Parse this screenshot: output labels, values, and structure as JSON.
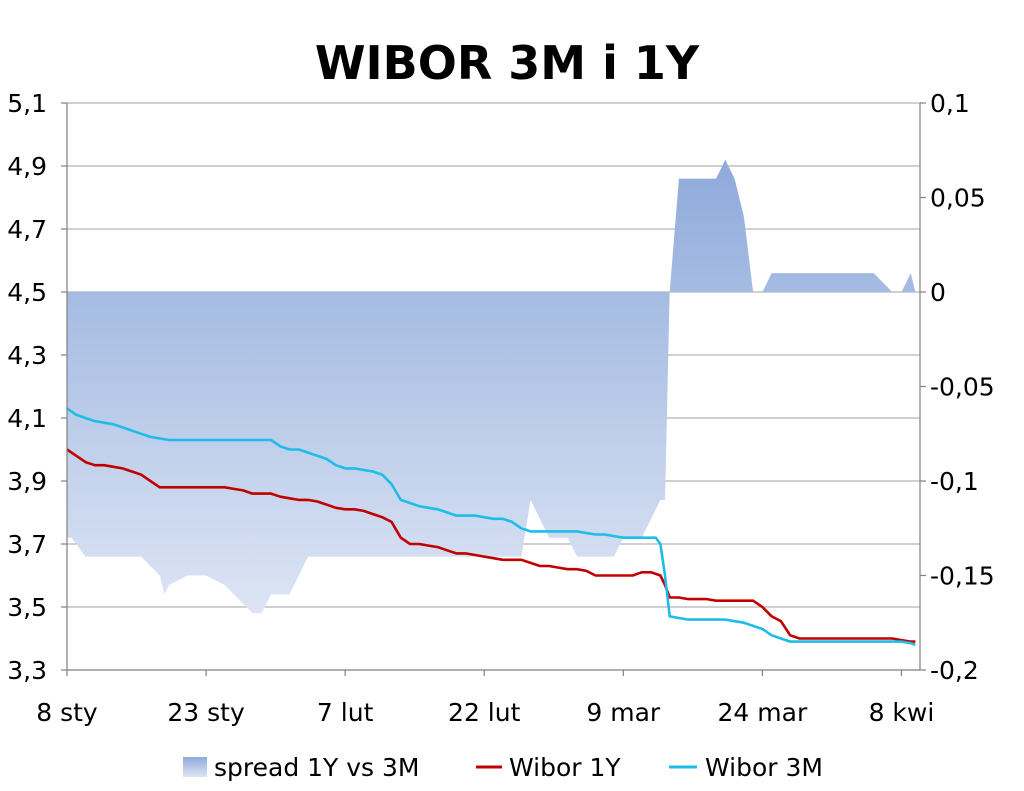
{
  "chart_data": {
    "type": "line",
    "title": "WIBOR 3M i 1Y",
    "x_tick_labels": [
      "8 sty",
      "23 sty",
      "7 lut",
      "22 lut",
      "9 mar",
      "24 mar",
      "8 kwi"
    ],
    "x_tick_days": [
      0,
      15,
      30,
      45,
      60,
      75,
      90
    ],
    "x_range_days": [
      0,
      92
    ],
    "y_left": {
      "range": [
        3.3,
        5.1
      ],
      "ticks": [
        3.3,
        3.5,
        3.7,
        3.9,
        4.1,
        4.3,
        4.5,
        4.7,
        4.9,
        5.1
      ],
      "tick_labels": [
        "3,3",
        "3,5",
        "3,7",
        "3,9",
        "4,1",
        "4,3",
        "4,5",
        "4,7",
        "4,9",
        "5,1"
      ]
    },
    "y_right": {
      "range": [
        -0.2,
        0.1
      ],
      "ticks": [
        -0.2,
        -0.15,
        -0.1,
        -0.05,
        0,
        0.05,
        0.1
      ],
      "tick_labels": [
        "-0,2",
        "-0,15",
        "-0,1",
        "-0,05",
        "0",
        "0,05",
        "0,1"
      ]
    },
    "grid": true,
    "legend_position": "bottom",
    "series": [
      {
        "name": "spread 1Y vs 3M",
        "kind": "area",
        "axis": "right",
        "color_top": "#8eaadb",
        "color_bottom": "#dde5f4",
        "x": [
          0,
          0.5,
          2,
          4,
          6,
          8,
          10,
          10.5,
          11,
          13,
          15,
          17,
          18,
          20,
          21,
          22,
          23,
          24,
          25,
          26,
          27,
          28,
          29,
          30,
          30.5,
          31,
          32,
          33,
          34,
          35,
          36,
          36.5,
          37,
          38,
          39,
          40,
          41,
          42,
          43,
          44,
          45,
          46,
          47,
          48,
          49,
          50,
          51,
          52,
          53,
          54,
          55,
          56,
          57,
          58,
          59,
          60,
          61,
          62,
          63,
          64,
          64.5,
          65,
          66,
          67,
          68,
          69,
          70,
          71,
          72,
          73,
          74,
          75,
          76,
          77,
          78,
          79,
          80,
          81,
          82,
          83,
          84,
          85,
          86,
          87,
          88,
          89,
          90,
          91,
          91.5
        ],
        "values": [
          -0.13,
          -0.13,
          -0.14,
          -0.14,
          -0.14,
          -0.14,
          -0.15,
          -0.16,
          -0.155,
          -0.15,
          -0.15,
          -0.155,
          -0.16,
          -0.17,
          -0.17,
          -0.16,
          -0.16,
          -0.16,
          -0.15,
          -0.14,
          -0.14,
          -0.14,
          -0.14,
          -0.14,
          -0.14,
          -0.14,
          -0.14,
          -0.14,
          -0.14,
          -0.14,
          -0.14,
          -0.14,
          -0.14,
          -0.14,
          -0.14,
          -0.14,
          -0.14,
          -0.14,
          -0.14,
          -0.14,
          -0.14,
          -0.14,
          -0.14,
          -0.14,
          -0.14,
          -0.11,
          -0.12,
          -0.13,
          -0.13,
          -0.13,
          -0.14,
          -0.14,
          -0.14,
          -0.14,
          -0.14,
          -0.13,
          -0.13,
          -0.13,
          -0.12,
          -0.11,
          -0.11,
          0,
          0.06,
          0.06,
          0.06,
          0.06,
          0.06,
          0.07,
          0.06,
          0.04,
          0,
          0,
          0.01,
          0.01,
          0.01,
          0.01,
          0.01,
          0.01,
          0.01,
          0.01,
          0.01,
          0.01,
          0.01,
          0.01,
          0.005,
          0,
          0,
          0.01,
          0
        ]
      },
      {
        "name": "Wibor 1Y",
        "kind": "line",
        "axis": "left",
        "color": "#c00000",
        "x": [
          0,
          1,
          2,
          3,
          4,
          5,
          6,
          7,
          8,
          9,
          10,
          11,
          12,
          13,
          14,
          15,
          16,
          17,
          18,
          19,
          20,
          21,
          22,
          23,
          24,
          25,
          26,
          27,
          28,
          29,
          30,
          31,
          32,
          33,
          34,
          35,
          36,
          37,
          38,
          39,
          40,
          41,
          42,
          43,
          44,
          45,
          46,
          47,
          48,
          49,
          50,
          51,
          52,
          53,
          54,
          55,
          56,
          57,
          58,
          59,
          60,
          61,
          62,
          63,
          63.5,
          64,
          64.5,
          65,
          66,
          67,
          68,
          69,
          70,
          71,
          72,
          73,
          74,
          75,
          76,
          77,
          78,
          79,
          80,
          81,
          82,
          83,
          84,
          85,
          86,
          87,
          88,
          89,
          90,
          91,
          91.5
        ],
        "values": [
          4.0,
          3.98,
          3.96,
          3.95,
          3.95,
          3.945,
          3.94,
          3.93,
          3.92,
          3.9,
          3.88,
          3.88,
          3.88,
          3.88,
          3.88,
          3.88,
          3.88,
          3.88,
          3.875,
          3.87,
          3.86,
          3.86,
          3.86,
          3.85,
          3.845,
          3.84,
          3.84,
          3.835,
          3.825,
          3.815,
          3.81,
          3.81,
          3.805,
          3.795,
          3.785,
          3.77,
          3.72,
          3.7,
          3.7,
          3.695,
          3.69,
          3.68,
          3.67,
          3.67,
          3.665,
          3.66,
          3.655,
          3.65,
          3.65,
          3.65,
          3.64,
          3.63,
          3.63,
          3.625,
          3.62,
          3.62,
          3.615,
          3.6,
          3.6,
          3.6,
          3.6,
          3.6,
          3.61,
          3.61,
          3.605,
          3.6,
          3.57,
          3.53,
          3.53,
          3.525,
          3.525,
          3.525,
          3.52,
          3.52,
          3.52,
          3.52,
          3.52,
          3.5,
          3.47,
          3.455,
          3.41,
          3.4,
          3.4,
          3.4,
          3.4,
          3.4,
          3.4,
          3.4,
          3.4,
          3.4,
          3.4,
          3.4,
          3.395,
          3.39,
          3.39
        ]
      },
      {
        "name": "Wibor 3M",
        "kind": "line",
        "axis": "left",
        "color": "#1ebde8",
        "x": [
          0,
          1,
          2,
          3,
          4,
          5,
          6,
          7,
          8,
          9,
          10,
          11,
          12,
          13,
          14,
          15,
          16,
          17,
          18,
          19,
          20,
          21,
          22,
          23,
          24,
          25,
          26,
          27,
          28,
          29,
          30,
          31,
          32,
          33,
          34,
          35,
          36,
          37,
          38,
          39,
          40,
          41,
          42,
          43,
          44,
          45,
          46,
          47,
          48,
          49,
          50,
          51,
          52,
          53,
          54,
          55,
          56,
          57,
          58,
          59,
          60,
          61,
          62,
          63,
          63.5,
          64,
          64.5,
          65,
          66,
          67,
          68,
          69,
          70,
          71,
          72,
          73,
          74,
          75,
          76,
          77,
          78,
          79,
          80,
          81,
          82,
          83,
          84,
          85,
          86,
          87,
          88,
          89,
          90,
          91,
          91.5
        ],
        "values": [
          4.13,
          4.11,
          4.1,
          4.09,
          4.085,
          4.08,
          4.07,
          4.06,
          4.05,
          4.04,
          4.035,
          4.03,
          4.03,
          4.03,
          4.03,
          4.03,
          4.03,
          4.03,
          4.03,
          4.03,
          4.03,
          4.03,
          4.03,
          4.01,
          4.0,
          4.0,
          3.99,
          3.98,
          3.97,
          3.95,
          3.94,
          3.94,
          3.935,
          3.93,
          3.92,
          3.89,
          3.84,
          3.83,
          3.82,
          3.815,
          3.81,
          3.8,
          3.79,
          3.79,
          3.79,
          3.785,
          3.78,
          3.78,
          3.77,
          3.75,
          3.74,
          3.74,
          3.74,
          3.74,
          3.74,
          3.74,
          3.735,
          3.73,
          3.73,
          3.725,
          3.72,
          3.72,
          3.72,
          3.72,
          3.72,
          3.7,
          3.6,
          3.47,
          3.465,
          3.46,
          3.46,
          3.46,
          3.46,
          3.46,
          3.455,
          3.45,
          3.44,
          3.43,
          3.41,
          3.4,
          3.39,
          3.39,
          3.39,
          3.39,
          3.39,
          3.39,
          3.39,
          3.39,
          3.39,
          3.39,
          3.39,
          3.39,
          3.39,
          3.385,
          3.38
        ]
      }
    ]
  }
}
